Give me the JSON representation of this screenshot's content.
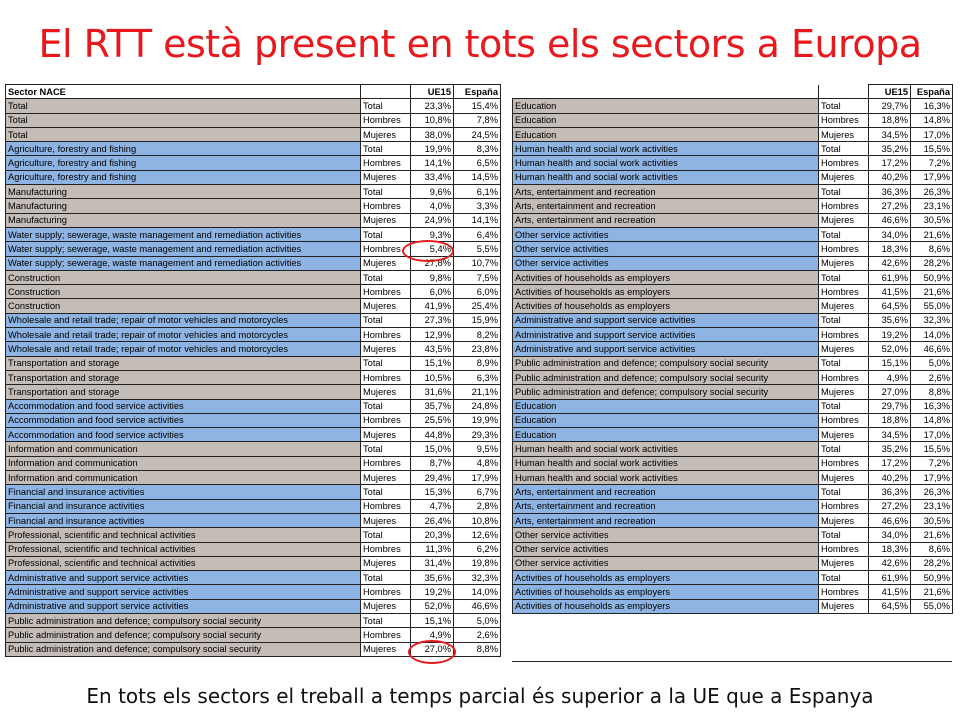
{
  "title": "El RTT està present en tots els sectors a Europa",
  "footer": "En tots els sectors el treball a temps parcial és superior a la UE que a Espanya",
  "colors": {
    "title": "#e8181c",
    "group_gray": "#c4bcb7",
    "group_blue": "#8db4e2",
    "circle": "#e8181c"
  },
  "left_table": {
    "headers": {
      "sector": "Sector NACE",
      "sex": "",
      "eu": "UE15",
      "es": "España"
    },
    "rows": [
      [
        "Total",
        "Total",
        "23,3%",
        "15,4%"
      ],
      [
        "Total",
        "Hombres",
        "10,8%",
        "7,8%"
      ],
      [
        "Total",
        "Mujeres",
        "38,0%",
        "24,5%"
      ],
      [
        "Agriculture, forestry and fishing",
        "Total",
        "19,9%",
        "8,3%"
      ],
      [
        "Agriculture, forestry and fishing",
        "Hombres",
        "14,1%",
        "6,5%"
      ],
      [
        "Agriculture, forestry and fishing",
        "Mujeres",
        "33,4%",
        "14,5%"
      ],
      [
        "Manufacturing",
        "Total",
        "9,6%",
        "6,1%"
      ],
      [
        "Manufacturing",
        "Hombres",
        "4,0%",
        "3,3%"
      ],
      [
        "Manufacturing",
        "Mujeres",
        "24,9%",
        "14,1%"
      ],
      [
        "Water supply; sewerage, waste management and remediation activities",
        "Total",
        "9,3%",
        "6,4%"
      ],
      [
        "Water supply; sewerage, waste management and remediation activities",
        "Hombres",
        "5,4%",
        "5,5%"
      ],
      [
        "Water supply; sewerage, waste management and remediation activities",
        "Mujeres",
        "27,8%",
        "10,7%"
      ],
      [
        "Construction",
        "Total",
        "9,8%",
        "7,5%"
      ],
      [
        "Construction",
        "Hombres",
        "6,0%",
        "6,0%"
      ],
      [
        "Construction",
        "Mujeres",
        "41,9%",
        "25,4%"
      ],
      [
        "Wholesale and retail trade; repair of motor vehicles and motorcycles",
        "Total",
        "27,3%",
        "15,9%"
      ],
      [
        "Wholesale and retail trade; repair of motor vehicles and motorcycles",
        "Hombres",
        "12,9%",
        "8,2%"
      ],
      [
        "Wholesale and retail trade; repair of motor vehicles and motorcycles",
        "Mujeres",
        "43,5%",
        "23,8%"
      ],
      [
        "Transportation and storage",
        "Total",
        "15,1%",
        "8,9%"
      ],
      [
        "Transportation and storage",
        "Hombres",
        "10,5%",
        "6,3%"
      ],
      [
        "Transportation and storage",
        "Mujeres",
        "31,6%",
        "21,1%"
      ],
      [
        "Accommodation and food service activities",
        "Total",
        "35,7%",
        "24,8%"
      ],
      [
        "Accommodation and food service activities",
        "Hombres",
        "25,5%",
        "19,9%"
      ],
      [
        "Accommodation and food service activities",
        "Mujeres",
        "44,8%",
        "29,3%"
      ],
      [
        "Information and communication",
        "Total",
        "15,0%",
        "9,5%"
      ],
      [
        "Information and communication",
        "Hombres",
        "8,7%",
        "4,8%"
      ],
      [
        "Information and communication",
        "Mujeres",
        "29,4%",
        "17,9%"
      ],
      [
        "Financial and insurance activities",
        "Total",
        "15,3%",
        "6,7%"
      ],
      [
        "Financial and insurance activities",
        "Hombres",
        "4,7%",
        "2,8%"
      ],
      [
        "Financial and insurance activities",
        "Mujeres",
        "26,4%",
        "10,8%"
      ],
      [
        "Professional, scientific and technical activities",
        "Total",
        "20,3%",
        "12,6%"
      ],
      [
        "Professional, scientific and technical activities",
        "Hombres",
        "11,3%",
        "6,2%"
      ],
      [
        "Professional, scientific and technical activities",
        "Mujeres",
        "31,4%",
        "19,8%"
      ],
      [
        "Administrative and support service activities",
        "Total",
        "35,6%",
        "32,3%"
      ],
      [
        "Administrative and support service activities",
        "Hombres",
        "19,2%",
        "14,0%"
      ],
      [
        "Administrative and support service activities",
        "Mujeres",
        "52,0%",
        "46,6%"
      ],
      [
        "Public administration and defence; compulsory social security",
        "Total",
        "15,1%",
        "5,0%"
      ],
      [
        "Public administration and defence; compulsory social security",
        "Hombres",
        "4,9%",
        "2,6%"
      ],
      [
        "Public administration and defence; compulsory social security",
        "Mujeres",
        "27,0%",
        "8,8%"
      ]
    ]
  },
  "right_table": {
    "headers": {
      "sector": "",
      "sex": "",
      "eu": "UE15",
      "es": "España"
    },
    "rows": [
      [
        "Education",
        "Total",
        "29,7%",
        "16,3%"
      ],
      [
        "Education",
        "Hombres",
        "18,8%",
        "14,8%"
      ],
      [
        "Education",
        "Mujeres",
        "34,5%",
        "17,0%"
      ],
      [
        "Human health and social work activities",
        "Total",
        "35,2%",
        "15,5%"
      ],
      [
        "Human health and social work activities",
        "Hombres",
        "17,2%",
        "7,2%"
      ],
      [
        "Human health and social work activities",
        "Mujeres",
        "40,2%",
        "17,9%"
      ],
      [
        "Arts, entertainment and recreation",
        "Total",
        "36,3%",
        "26,3%"
      ],
      [
        "Arts, entertainment and recreation",
        "Hombres",
        "27,2%",
        "23,1%"
      ],
      [
        "Arts, entertainment and recreation",
        "Mujeres",
        "46,6%",
        "30,5%"
      ],
      [
        "Other service activities",
        "Total",
        "34,0%",
        "21,6%"
      ],
      [
        "Other service activities",
        "Hombres",
        "18,3%",
        "8,6%"
      ],
      [
        "Other service activities",
        "Mujeres",
        "42,6%",
        "28,2%"
      ],
      [
        "Activities of households as employers",
        "Total",
        "61,9%",
        "50,9%"
      ],
      [
        "Activities of households as employers",
        "Hombres",
        "41,5%",
        "21,6%"
      ],
      [
        "Activities of households as employers",
        "Mujeres",
        "64,5%",
        "55,0%"
      ],
      [
        "Administrative and support service activities",
        "Total",
        "35,6%",
        "32,3%"
      ],
      [
        "Administrative and support service activities",
        "Hombres",
        "19,2%",
        "14,0%"
      ],
      [
        "Administrative and support service activities",
        "Mujeres",
        "52,0%",
        "46,6%"
      ],
      [
        "Public administration and defence; compulsory social security",
        "Total",
        "15,1%",
        "5,0%"
      ],
      [
        "Public administration and defence; compulsory social security",
        "Hombres",
        "4,9%",
        "2,6%"
      ],
      [
        "Public administration and defence; compulsory social security",
        "Mujeres",
        "27,0%",
        "8,8%"
      ],
      [
        "Education",
        "Total",
        "29,7%",
        "16,3%"
      ],
      [
        "Education",
        "Hombres",
        "18,8%",
        "14,8%"
      ],
      [
        "Education",
        "Mujeres",
        "34,5%",
        "17,0%"
      ],
      [
        "Human health and social work activities",
        "Total",
        "35,2%",
        "15,5%"
      ],
      [
        "Human health and social work activities",
        "Hombres",
        "17,2%",
        "7,2%"
      ],
      [
        "Human health and social work activities",
        "Mujeres",
        "40,2%",
        "17,9%"
      ],
      [
        "Arts, entertainment and recreation",
        "Total",
        "36,3%",
        "26,3%"
      ],
      [
        "Arts, entertainment and recreation",
        "Hombres",
        "27,2%",
        "23,1%"
      ],
      [
        "Arts, entertainment and recreation",
        "Mujeres",
        "46,6%",
        "30,5%"
      ],
      [
        "Other service activities",
        "Total",
        "34,0%",
        "21,6%"
      ],
      [
        "Other service activities",
        "Hombres",
        "18,3%",
        "8,6%"
      ],
      [
        "Other service activities",
        "Mujeres",
        "42,6%",
        "28,2%"
      ],
      [
        "Activities of households as employers",
        "Total",
        "61,9%",
        "50,9%"
      ],
      [
        "Activities of households as employers",
        "Hombres",
        "41,5%",
        "21,6%"
      ],
      [
        "Activities of households as employers",
        "Mujeres",
        "64,5%",
        "55,0%"
      ]
    ]
  }
}
